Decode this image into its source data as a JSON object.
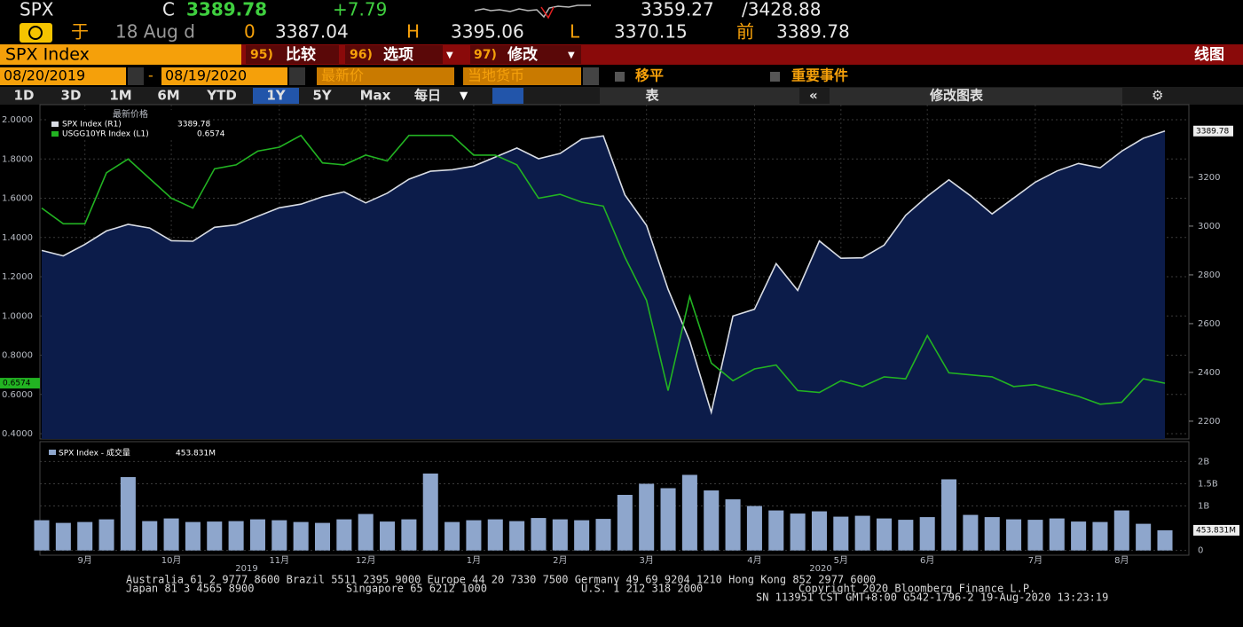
{
  "quote": {
    "ticker": "SPX",
    "close_flag": "C",
    "last": "3389.78",
    "change": "+7.79",
    "range_low": "3359.27",
    "range_high": "/3428.88",
    "date_prefix": "于",
    "date": "18 Aug d",
    "open_flag": "0",
    "open": "3387.04",
    "high_flag": "H",
    "high": "3395.06",
    "low_flag": "L",
    "low": "3370.15",
    "prev_flag": "前",
    "prev": "3389.78"
  },
  "toolbar": {
    "security": "SPX Index",
    "btn1_num": "95)",
    "btn1": "比较",
    "btn2_num": "96)",
    "btn2": "选项",
    "btn3_num": "97)",
    "btn3": "修改",
    "chart_kind": "线图"
  },
  "settings": {
    "start": "08/20/2019",
    "sep": "-",
    "end": "08/19/2020",
    "field": "最新价",
    "currency": "当地货币",
    "smooth": "移平",
    "events": "重要事件"
  },
  "periods": [
    "1D",
    "3D",
    "1M",
    "6M",
    "YTD",
    "1Y",
    "5Y",
    "Max"
  ],
  "period_active": 5,
  "freq": "每日",
  "table_btn": "表",
  "edit_btn": "修改图表",
  "chart_data": {
    "type": "line",
    "legend_title": "最新价格",
    "categories": [
      null,
      null,
      "9月",
      null,
      null,
      null,
      "10月",
      null,
      null,
      null,
      null,
      "11月",
      null,
      null,
      null,
      "12月",
      null,
      null,
      null,
      null,
      "1月",
      null,
      null,
      null,
      "2月",
      null,
      null,
      null,
      "3月",
      null,
      null,
      null,
      null,
      "4月",
      null,
      null,
      null,
      "5月",
      null,
      null,
      null,
      "6月",
      null,
      null,
      null,
      null,
      "7月",
      null,
      null,
      null,
      "8月",
      null,
      null
    ],
    "year_labels": [
      "2019",
      "2020"
    ],
    "series": [
      {
        "name": "SPX Index  (R1)",
        "last_label": "3389.78",
        "color": "#d8dce4",
        "fill": "#0c1c4a",
        "axis": "y2",
        "values": [
          2900,
          2878,
          2925,
          2980,
          3007,
          2992,
          2940,
          2938,
          2995,
          3005,
          3040,
          3075,
          3090,
          3120,
          3140,
          3095,
          3135,
          3192,
          3225,
          3231,
          3246,
          3283,
          3320,
          3276,
          3298,
          3357,
          3370,
          3128,
          3003,
          2741,
          2529,
          2237,
          2631,
          2659,
          2846,
          2736,
          2939,
          2868,
          2870,
          2922,
          3044,
          3122,
          3190,
          3124,
          3050,
          3115,
          3180,
          3226,
          3257,
          3239,
          3307,
          3360,
          3389.78
        ]
      },
      {
        "name": "USGG10YR Index  (L1)",
        "last_label": "0.6574",
        "color": "#22b322",
        "axis": "y",
        "values": [
          1.55,
          1.47,
          1.47,
          1.73,
          1.8,
          1.7,
          1.6,
          1.55,
          1.75,
          1.77,
          1.84,
          1.86,
          1.92,
          1.78,
          1.77,
          1.82,
          1.79,
          1.92,
          1.92,
          1.92,
          1.82,
          1.82,
          1.77,
          1.6,
          1.62,
          1.58,
          1.56,
          1.3,
          1.08,
          0.62,
          1.1,
          0.76,
          0.67,
          0.73,
          0.75,
          0.62,
          0.61,
          0.67,
          0.64,
          0.69,
          0.68,
          0.9,
          0.71,
          0.7,
          0.69,
          0.64,
          0.65,
          0.62,
          0.59,
          0.55,
          0.56,
          0.68,
          0.6574
        ]
      }
    ],
    "ylim": [
      0.373,
      2.077
    ],
    "yticks": [
      {
        "value": 0.4,
        "label": "0.4000"
      },
      {
        "value": 0.6,
        "label": "0.6000"
      },
      {
        "value": 0.8,
        "label": "0.8000"
      },
      {
        "value": 1.0,
        "label": "1.0000"
      },
      {
        "value": 1.2,
        "label": "1.2000"
      },
      {
        "value": 1.4,
        "label": "1.4000"
      },
      {
        "value": 1.6,
        "label": "1.6000"
      },
      {
        "value": 1.8,
        "label": "1.8000"
      },
      {
        "value": 2.0,
        "label": "2.0000"
      }
    ],
    "y2lim": [
      2127,
      3498
    ],
    "y2ticks": [
      2200,
      2400,
      2600,
      2800,
      3000,
      3200
    ],
    "grid": true,
    "volume": {
      "name": "SPX Index - 成交量",
      "last_label": "453.831M",
      "color": "#8ea6cc",
      "values": [
        680000000,
        620000000,
        640000000,
        700000000,
        1650000000,
        660000000,
        720000000,
        640000000,
        650000000,
        660000000,
        700000000,
        680000000,
        640000000,
        620000000,
        700000000,
        820000000,
        650000000,
        700000000,
        1730000000,
        640000000,
        680000000,
        700000000,
        660000000,
        730000000,
        700000000,
        680000000,
        710000000,
        1250000000,
        1500000000,
        1400000000,
        1700000000,
        1350000000,
        1150000000,
        1000000000,
        900000000,
        830000000,
        880000000,
        760000000,
        780000000,
        720000000,
        690000000,
        750000000,
        1600000000,
        800000000,
        750000000,
        700000000,
        690000000,
        720000000,
        650000000,
        640000000,
        900000000,
        600000000,
        453831000
      ],
      "ylim": [
        -106000000,
        2447000000
      ],
      "yticks": [
        0,
        {
          "value": 1000000000,
          "label": "1B"
        },
        {
          "value": 1500000000,
          "label": "1.5B"
        },
        {
          "value": 2000000000,
          "label": "2B"
        }
      ]
    }
  },
  "footer": {
    "line1": "Australia 61 2 9777 8600  Brazil 5511 2395 9000  Europe 44 20 7330 7500  Germany 49 69 9204 1210  Hong Kong 852 2977 6000",
    "line2a": "Japan 81 3 4565 8900",
    "line2b": "Singapore 65 6212 1000",
    "line2c": "U.S. 1 212 318 2000",
    "line2d": "Copyright 2020 Bloomberg Finance L.P.",
    "line3": "SN 113951 CST  GMT+8:00 G542-1796-2 19-Aug-2020 13:23:19"
  }
}
